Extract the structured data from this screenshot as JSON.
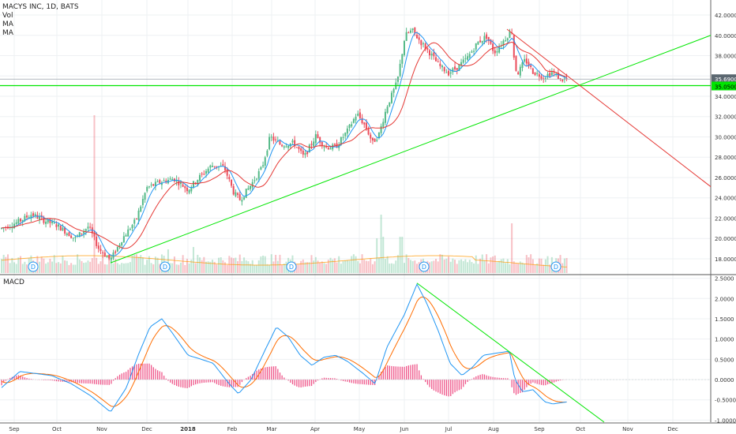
{
  "legend": {
    "title": "MACYS INC, 1D, BATS",
    "vol": "Vol",
    "ma1": "MA",
    "ma2": "MA"
  },
  "macd_label": "MACD",
  "colors": {
    "up": "#53b987",
    "down": "#eb4d5c",
    "ma_fast": "#2196f3",
    "ma_slow": "#e53935",
    "trend_green": "#4caf50",
    "trend_green_bright": "#00e600",
    "trend_red": "#e53935",
    "macd_line": "#2196f3",
    "signal_line": "#ff6d00",
    "hist": "#e91e63",
    "price_badge": "#5b6770",
    "green_badge": "#00e600"
  },
  "price_axis": {
    "ticks": [
      "42.0000",
      "40.0000",
      "38.0000",
      "36.0000",
      "34.0000",
      "32.0000",
      "30.0000",
      "28.0000",
      "26.0000",
      "24.0000",
      "22.0000",
      "20.0000",
      "18.0000"
    ],
    "tick_values": [
      42,
      40,
      38,
      36,
      34,
      32,
      30,
      28,
      26,
      24,
      22,
      20,
      18
    ],
    "last_price": "35.6900",
    "green_level": "35.0500"
  },
  "macd_axis": {
    "ticks": [
      "2.5000",
      "2.0000",
      "1.5000",
      "1.0000",
      "0.5000",
      "0.0000",
      "-0.5000",
      "-1.0000"
    ],
    "tick_values": [
      2.5,
      2.0,
      1.5,
      1.0,
      0.5,
      0.0,
      -0.5,
      -1.0
    ]
  },
  "time_axis": [
    "Sep",
    "Oct",
    "Nov",
    "Dec",
    "2018",
    "Feb",
    "Mar",
    "Apr",
    "May",
    "Jun",
    "Jul",
    "Aug",
    "Sep",
    "Oct",
    "Nov",
    "Dec"
  ],
  "dividend_marker": "D",
  "chart_data": {
    "type": "line",
    "title": "MACYS INC, 1D, BATS",
    "x": [
      "Sep",
      "Oct",
      "Nov",
      "Dec",
      "2018",
      "Feb",
      "Mar",
      "Apr",
      "May",
      "Jun",
      "Jul",
      "Aug",
      "Sep"
    ],
    "series": [
      {
        "values": [
          21.0,
          22.3,
          18.0,
          25.0,
          26.8,
          24.5,
          29.5,
          29.0,
          32.5,
          40.5,
          37.5,
          41.5,
          35.7
        ]
      }
    ],
    "macd": [
      {
        "values": [
          0.1,
          0.0,
          -0.6,
          1.4,
          0.4,
          -0.3,
          1.2,
          0.4,
          0.1,
          2.3,
          0.2,
          0.7,
          -0.55
        ]
      },
      {
        "values": [
          0.0,
          -0.1,
          -0.3,
          1.1,
          0.6,
          -0.1,
          0.9,
          0.5,
          0.2,
          2.0,
          0.3,
          0.6,
          -0.5
        ]
      }
    ],
    "ylim": [
      16.5,
      42.8
    ],
    "macd_ylim": [
      -1.05,
      2.55
    ],
    "horizontal_level": 35.05,
    "dividend_months": [
      "Oct",
      "Dec",
      "Mar",
      "Jun",
      "Sep"
    ]
  }
}
